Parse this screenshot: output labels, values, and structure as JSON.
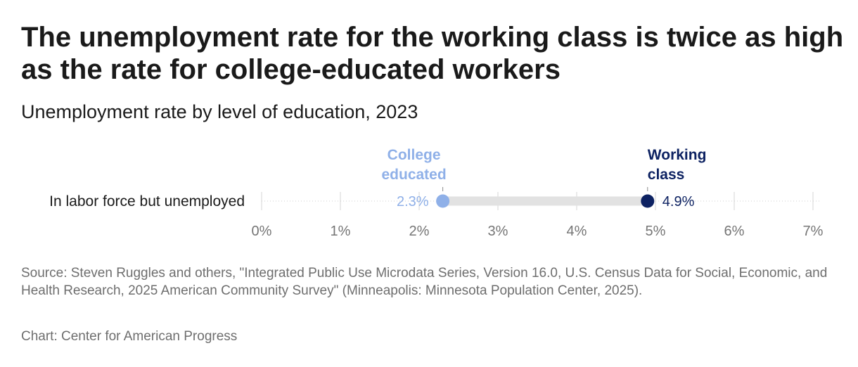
{
  "chart_data": {
    "type": "dot-range",
    "title": "The unemployment rate for the working class is twice as high as the rate for college-educated workers",
    "subtitle": "Unemployment rate by level of education, 2023",
    "categories": [
      "In labor force but unemployed"
    ],
    "series": [
      {
        "name": "College educated",
        "label_lines": [
          "College",
          "educated"
        ],
        "values": [
          2.3
        ],
        "value_labels": [
          "2.3%"
        ],
        "color": "#8fb0e8"
      },
      {
        "name": "Working class",
        "label_lines": [
          "Working",
          "class"
        ],
        "values": [
          4.9
        ],
        "value_labels": [
          "4.9%"
        ],
        "color": "#0d2262"
      }
    ],
    "xlim": [
      0,
      7
    ],
    "xticks": [
      0,
      1,
      2,
      3,
      4,
      5,
      6,
      7
    ],
    "xtick_labels": [
      "0%",
      "1%",
      "2%",
      "3%",
      "4%",
      "5%",
      "6%",
      "7%"
    ],
    "xlabel": "",
    "ylabel": "",
    "grid": true,
    "connector_color": "#e2e2e2"
  },
  "notes": {
    "source": "Source: Steven Ruggles and others, \"Integrated Public Use Microdata Series, Version 16.0, U.S. Census Data for Social, Economic, and Health Research, 2025 American Community Survey\" (Minneapolis: Minnesota Population Center, 2025).",
    "credit": "Chart: Center for American Progress"
  }
}
